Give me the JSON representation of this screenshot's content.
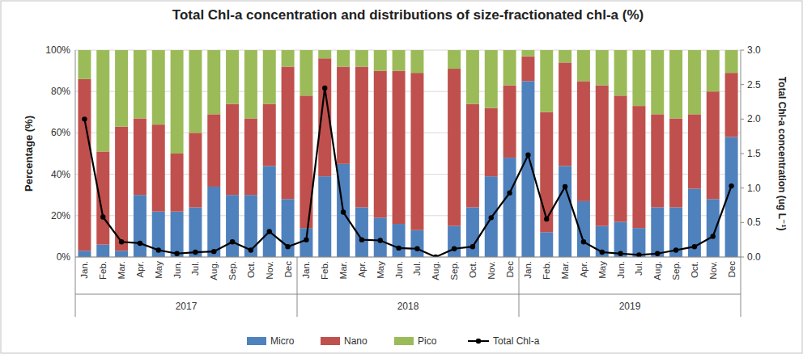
{
  "chart_data": {
    "type": "bar",
    "title": "Total Chl-a concentration and distributions of size-fractionated chl-a (%)",
    "y_label": "Percentage (%)",
    "y2_label": "Total Chl-a concentration  (ug L⁻¹)",
    "stacked": true,
    "grid": true,
    "legend": "bottom",
    "categories": [
      "Jan.",
      "Feb.",
      "Mar.",
      "Apr.",
      "May",
      "Jun.",
      "Jul.",
      "Aug.",
      "Sep.",
      "Oct.",
      "Nov.",
      "Dec",
      "Jan.",
      "Feb.",
      "Mar.",
      "Apr.",
      "May",
      "Jun.",
      "Jul.",
      "Aug.",
      "Sep.",
      "Oct.",
      "Nov.",
      "Dec",
      "Jan.",
      "Feb.",
      "Mar.",
      "Apr.",
      "May",
      "Jun.",
      "Jul.",
      "Aug.",
      "Sep.",
      "Oct.",
      "Nov.",
      "Dec"
    ],
    "groups": [
      {
        "label": "2017",
        "count": 12
      },
      {
        "label": "2018",
        "count": 12
      },
      {
        "label": "2019",
        "count": 12
      }
    ],
    "ylim": [
      0,
      100
    ],
    "yticks": [
      {
        "value": 0,
        "label": "0%"
      },
      {
        "value": 20,
        "label": "20%"
      },
      {
        "value": 40,
        "label": "40%"
      },
      {
        "value": 60,
        "label": "60%"
      },
      {
        "value": 80,
        "label": "80%"
      },
      {
        "value": 100,
        "label": "100%"
      }
    ],
    "y2lim": [
      0,
      3
    ],
    "y2ticks": [
      {
        "value": 0,
        "label": "0.0"
      },
      {
        "value": 0.5,
        "label": "0.5"
      },
      {
        "value": 1,
        "label": "1.0"
      },
      {
        "value": 1.5,
        "label": "1.5"
      },
      {
        "value": 2,
        "label": "2.0"
      },
      {
        "value": 2.5,
        "label": "2.5"
      },
      {
        "value": 3,
        "label": "3.0"
      }
    ],
    "series": [
      {
        "name": "Micro",
        "type": "bar",
        "color": "#4f81bd",
        "values": [
          3,
          6,
          3,
          30,
          22,
          22,
          24,
          34,
          30,
          30,
          44,
          28,
          14,
          39,
          45,
          24,
          19,
          16,
          13,
          null,
          15,
          24,
          39,
          48,
          85,
          12,
          44,
          27,
          15,
          17,
          14,
          24,
          24,
          33,
          28,
          58
        ]
      },
      {
        "name": "Nano",
        "type": "bar",
        "color": "#c0504d",
        "values": [
          83,
          45,
          60,
          37,
          42,
          28,
          36,
          35,
          44,
          37,
          30,
          64,
          64,
          57,
          47,
          68,
          71,
          74,
          76,
          null,
          76,
          50,
          33,
          35,
          12,
          58,
          50,
          58,
          68,
          61,
          59,
          45,
          43,
          36,
          52,
          31
        ]
      },
      {
        "name": "Pico",
        "type": "bar",
        "color": "#9bbb59",
        "values": [
          14,
          49,
          37,
          33,
          36,
          50,
          40,
          31,
          26,
          33,
          26,
          8,
          22,
          4,
          8,
          8,
          10,
          10,
          11,
          null,
          9,
          26,
          28,
          17,
          3,
          30,
          6,
          15,
          17,
          22,
          27,
          31,
          33,
          31,
          20,
          11
        ]
      },
      {
        "name": "Total Chl-a",
        "type": "line",
        "axis": "y2",
        "color": "#000000",
        "marker": "circle",
        "line_style": "solid",
        "values": [
          2.0,
          0.58,
          0.22,
          0.2,
          0.1,
          0.05,
          0.07,
          0.08,
          0.22,
          0.1,
          0.37,
          0.15,
          0.25,
          2.45,
          0.65,
          0.25,
          0.24,
          0.13,
          0.12,
          0.0,
          0.12,
          0.15,
          0.57,
          0.93,
          1.48,
          0.55,
          1.02,
          0.22,
          0.07,
          0.05,
          0.03,
          0.05,
          0.1,
          0.15,
          0.3,
          1.03
        ]
      }
    ]
  }
}
